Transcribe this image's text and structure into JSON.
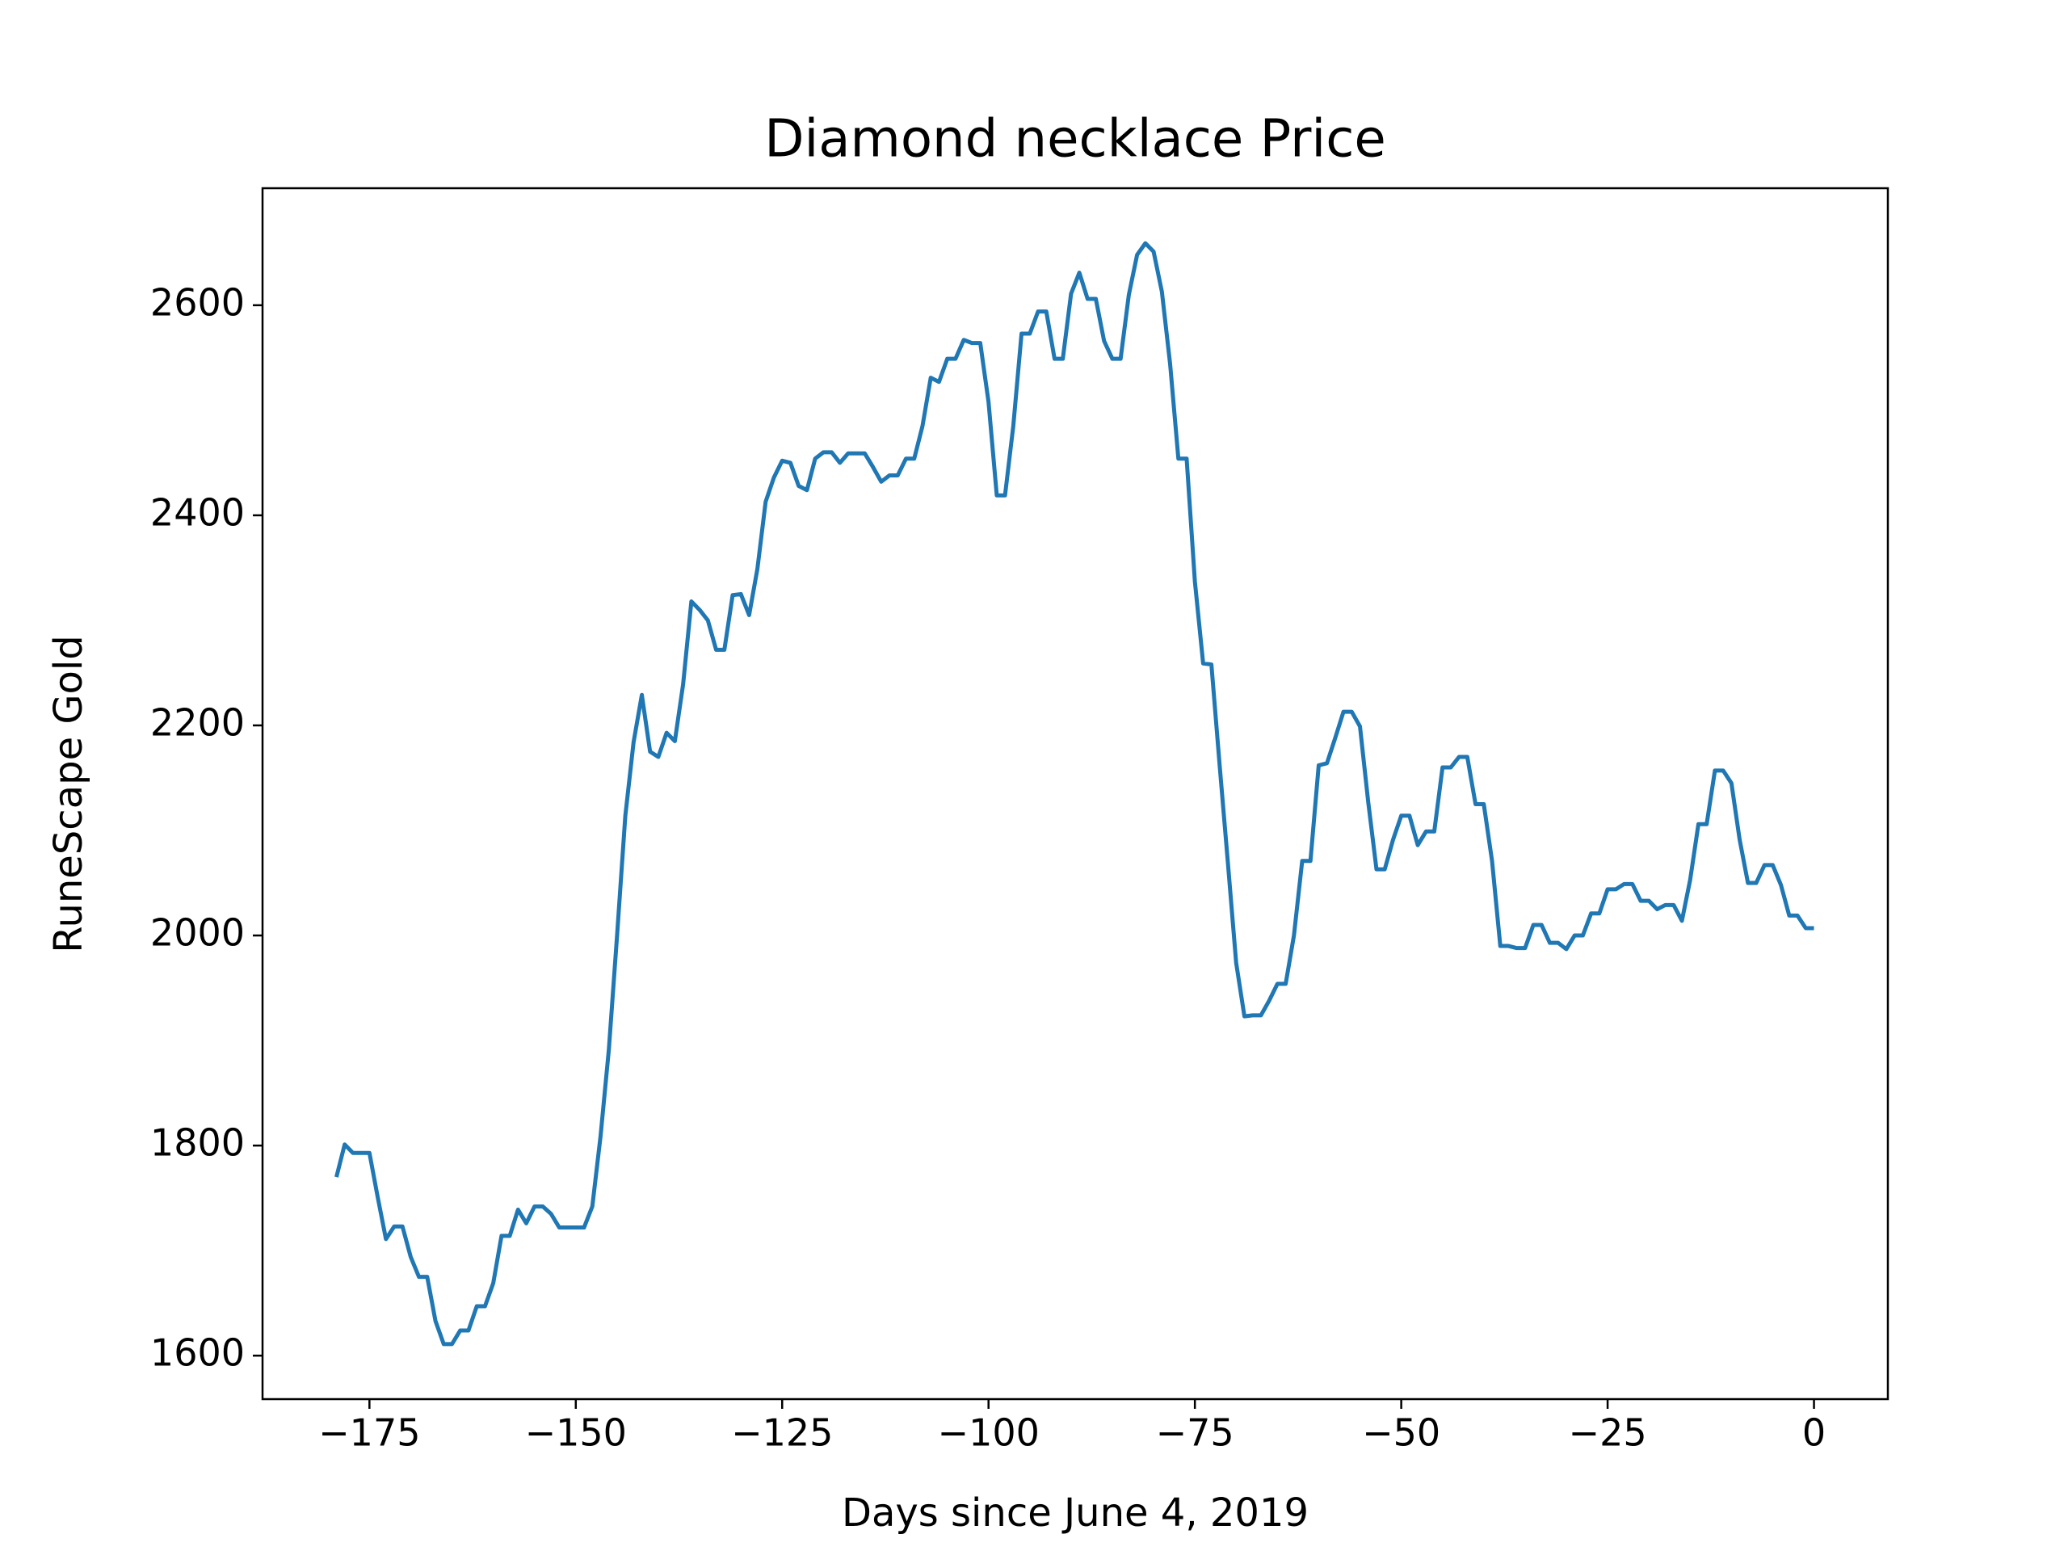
{
  "chart_data": {
    "type": "line",
    "title": "Diamond necklace Price",
    "x_label": "Days since June 4, 2019",
    "y_label": "RuneScape Gold",
    "color": "#1f77b4",
    "x": [
      -179,
      -178,
      -177,
      -176,
      -175,
      -174,
      -173,
      -172,
      -171,
      -170,
      -169,
      -168,
      -167,
      -166,
      -165,
      -164,
      -163,
      -162,
      -161,
      -160,
      -159,
      -158,
      -157,
      -156,
      -155,
      -154,
      -153,
      -152,
      -151,
      -150,
      -149,
      -148,
      -147,
      -146,
      -145,
      -144,
      -143,
      -142,
      -141,
      -140,
      -139,
      -138,
      -137,
      -136,
      -135,
      -134,
      -133,
      -132,
      -131,
      -130,
      -129,
      -128,
      -127,
      -126,
      -125,
      -124,
      -123,
      -122,
      -121,
      -120,
      -119,
      -118,
      -117,
      -116,
      -115,
      -114,
      -113,
      -112,
      -111,
      -110,
      -109,
      -108,
      -107,
      -106,
      -105,
      -104,
      -103,
      -102,
      -101,
      -100,
      -99,
      -98,
      -97,
      -96,
      -95,
      -94,
      -93,
      -92,
      -91,
      -90,
      -89,
      -88,
      -87,
      -86,
      -85,
      -84,
      -83,
      -82,
      -81,
      -80,
      -79,
      -78,
      -77,
      -76,
      -75,
      -74,
      -73,
      -72,
      -71,
      -70,
      -69,
      -68,
      -67,
      -66,
      -65,
      -64,
      -63,
      -62,
      -61,
      -60,
      -59,
      -58,
      -57,
      -56,
      -55,
      -54,
      -53,
      -52,
      -51,
      -50,
      -49,
      -48,
      -47,
      -46,
      -45,
      -44,
      -43,
      -42,
      -41,
      -40,
      -39,
      -38,
      -37,
      -36,
      -35,
      -34,
      -33,
      -32,
      -31,
      -30,
      -29,
      -28,
      -27,
      -26,
      -25,
      -24,
      -23,
      -22,
      -21,
      -20,
      -19,
      -18,
      -17,
      -16,
      -15,
      -14,
      -13,
      -12,
      -11,
      -10,
      -9,
      -8,
      -7,
      -6,
      -5,
      -4,
      -3,
      -2,
      -1,
      0
    ],
    "values": [
      1770,
      1801,
      1793,
      1793,
      1793,
      1751,
      1711,
      1723,
      1723,
      1694,
      1675,
      1675,
      1633,
      1611,
      1611,
      1624,
      1624,
      1647,
      1647,
      1669,
      1714,
      1714,
      1739,
      1726,
      1742,
      1742,
      1735,
      1722,
      1722,
      1722,
      1722,
      1742,
      1809,
      1891,
      2000,
      2114,
      2184,
      2229,
      2175,
      2170,
      2193,
      2185,
      2239,
      2318,
      2310,
      2300,
      2272,
      2272,
      2324,
      2325,
      2305,
      2349,
      2413,
      2436,
      2452,
      2450,
      2428,
      2424,
      2454,
      2460,
      2460,
      2450,
      2459,
      2459,
      2459,
      2446,
      2432,
      2438,
      2438,
      2454,
      2454,
      2485,
      2531,
      2527,
      2549,
      2549,
      2567,
      2564,
      2564,
      2508,
      2419,
      2419,
      2485,
      2573,
      2573,
      2594,
      2594,
      2549,
      2549,
      2611,
      2631,
      2606,
      2606,
      2566,
      2549,
      2549,
      2610,
      2648,
      2659,
      2651,
      2613,
      2544,
      2454,
      2454,
      2337,
      2259,
      2258,
      2162,
      2069,
      1974,
      1923,
      1924,
      1924,
      1938,
      1954,
      1954,
      2000,
      2071,
      2071,
      2162,
      2164,
      2188,
      2213,
      2213,
      2199,
      2127,
      2063,
      2063,
      2091,
      2114,
      2114,
      2086,
      2099,
      2099,
      2160,
      2160,
      2170,
      2170,
      2125,
      2125,
      2071,
      1990,
      1990,
      1988,
      1988,
      2010,
      2010,
      1993,
      1993,
      1987,
      2000,
      2000,
      2021,
      2021,
      2044,
      2044,
      2049,
      2049,
      2033,
      2033,
      2025,
      2029,
      2029,
      2014,
      2053,
      2106,
      2106,
      2157,
      2157,
      2145,
      2091,
      2050,
      2050,
      2067,
      2067,
      2048,
      2019,
      2019,
      2007,
      2007
    ],
    "xlim": [
      -187.95,
      8.95
    ],
    "ylim": [
      1558.6,
      2711.4
    ],
    "xticks": [
      {
        "value": -175,
        "label": "−175"
      },
      {
        "value": -150,
        "label": "−150"
      },
      {
        "value": -125,
        "label": "−125"
      },
      {
        "value": -100,
        "label": "−100"
      },
      {
        "value": -75,
        "label": "−75"
      },
      {
        "value": -50,
        "label": "−50"
      },
      {
        "value": -25,
        "label": "−25"
      },
      0
    ],
    "yticks": [
      1600,
      1800,
      2000,
      2200,
      2400,
      2600
    ]
  }
}
